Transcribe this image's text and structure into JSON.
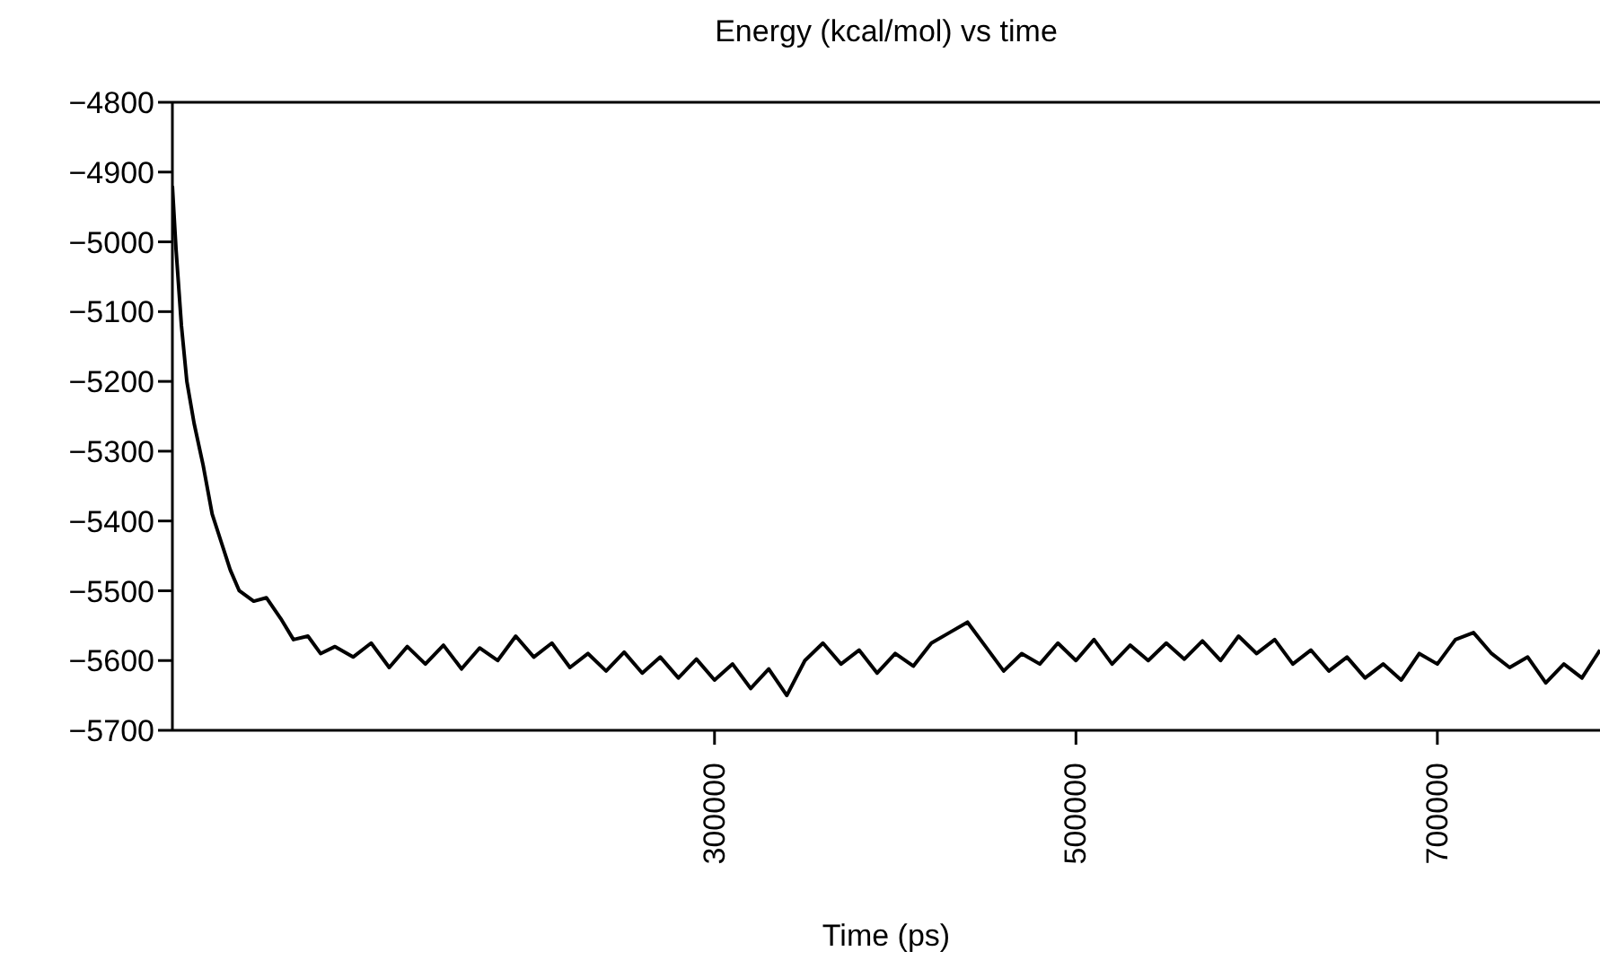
{
  "chart_data": {
    "type": "line",
    "title": "Energy (kcal/mol) vs time",
    "xlabel": "Time (ps)",
    "x": [
      0,
      2000,
      5000,
      8000,
      12000,
      17000,
      22000,
      27000,
      32000,
      37000,
      45000,
      52000,
      60000,
      67000,
      75000,
      82000,
      90000,
      100000,
      110000,
      120000,
      130000,
      140000,
      150000,
      160000,
      170000,
      180000,
      190000,
      200000,
      210000,
      220000,
      230000,
      240000,
      250000,
      260000,
      270000,
      280000,
      290000,
      300000,
      310000,
      320000,
      330000,
      340000,
      350000,
      360000,
      370000,
      380000,
      390000,
      400000,
      410000,
      420000,
      430000,
      440000,
      450000,
      460000,
      470000,
      480000,
      490000,
      500000,
      510000,
      520000,
      530000,
      540000,
      550000,
      560000,
      570000,
      580000,
      590000,
      600000,
      610000,
      620000,
      630000,
      640000,
      650000,
      660000,
      670000,
      680000,
      690000,
      700000,
      710000,
      720000,
      730000,
      740000,
      750000,
      760000,
      770000,
      780000,
      790000
    ],
    "series": [
      {
        "color": "#000000",
        "values": [
          -4920,
          -5010,
          -5120,
          -5200,
          -5260,
          -5320,
          -5390,
          -5430,
          -5470,
          -5500,
          -5515,
          -5510,
          -5540,
          -5570,
          -5565,
          -5590,
          -5580,
          -5595,
          -5575,
          -5610,
          -5580,
          -5605,
          -5578,
          -5612,
          -5582,
          -5600,
          -5565,
          -5595,
          -5575,
          -5610,
          -5590,
          -5615,
          -5588,
          -5618,
          -5595,
          -5625,
          -5598,
          -5628,
          -5605,
          -5640,
          -5612,
          -5650,
          -5600,
          -5575,
          -5605,
          -5585,
          -5618,
          -5590,
          -5608,
          -5575,
          -5560,
          -5545,
          -5580,
          -5615,
          -5590,
          -5605,
          -5575,
          -5600,
          -5570,
          -5605,
          -5578,
          -5600,
          -5575,
          -5598,
          -5572,
          -5600,
          -5565,
          -5590,
          -5570,
          -5605,
          -5585,
          -5615,
          -5595,
          -5625,
          -5605,
          -5628,
          -5590,
          -5605,
          -5570,
          -5560,
          -5590,
          -5610,
          -5595,
          -5632,
          -5605,
          -5625,
          -5585
        ]
      }
    ],
    "xlim": [
      0,
      790000
    ],
    "xticks": [
      300000,
      500000,
      700000
    ],
    "ylim": [
      -5700,
      -4800
    ],
    "yticks": [
      -5700,
      -5600,
      -5500,
      -5400,
      -5300,
      -5200,
      -5100,
      -5000,
      -4900,
      -4800
    ],
    "grid": false,
    "legend": false,
    "marker": "none"
  }
}
